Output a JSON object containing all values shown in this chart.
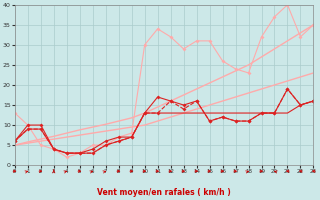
{
  "xlabel": "Vent moyen/en rafales ( km/h )",
  "bg_color": "#cce8e8",
  "grid_color": "#aacccc",
  "xlim": [
    0,
    23
  ],
  "ylim": [
    0,
    40
  ],
  "yticks": [
    0,
    5,
    10,
    15,
    20,
    25,
    30,
    35,
    40
  ],
  "xticks": [
    0,
    1,
    2,
    3,
    4,
    5,
    6,
    7,
    8,
    9,
    10,
    11,
    12,
    13,
    14,
    15,
    16,
    17,
    18,
    19,
    20,
    21,
    22,
    23
  ],
  "series": [
    {
      "x": [
        0,
        1,
        2,
        3,
        4,
        5,
        6,
        7,
        8,
        9,
        10,
        11,
        12,
        13,
        14,
        15,
        16,
        17,
        18,
        19,
        20,
        21,
        22,
        23
      ],
      "y": [
        5.0,
        5.5,
        6.0,
        6.5,
        7.0,
        7.5,
        8.0,
        8.5,
        9.0,
        9.5,
        10.0,
        11.0,
        12.0,
        13.0,
        14.0,
        15.0,
        16.0,
        17.0,
        18.0,
        19.0,
        20.0,
        21.0,
        22.0,
        23.0
      ],
      "color": "#ffaaaa",
      "marker": null,
      "markersize": 0,
      "linewidth": 1.0,
      "linestyle": "-"
    },
    {
      "x": [
        0,
        1,
        2,
        3,
        4,
        5,
        6,
        7,
        8,
        9,
        10,
        11,
        12,
        13,
        14,
        15,
        16,
        17,
        18,
        19,
        20,
        21,
        22,
        23
      ],
      "y": [
        5.0,
        5.8,
        6.5,
        7.2,
        8.0,
        8.8,
        9.5,
        10.2,
        11.0,
        11.8,
        13.0,
        14.5,
        16.0,
        17.5,
        19.0,
        20.5,
        22.0,
        23.5,
        25.0,
        27.0,
        29.0,
        31.0,
        33.0,
        35.0
      ],
      "color": "#ffaaaa",
      "marker": null,
      "markersize": 0,
      "linewidth": 1.0,
      "linestyle": "-"
    },
    {
      "x": [
        0,
        1,
        2,
        3,
        4,
        5,
        6,
        7,
        8,
        9,
        10,
        11,
        12,
        13,
        14,
        15,
        16,
        17,
        18,
        19,
        20,
        21,
        22,
        23
      ],
      "y": [
        13,
        10,
        5,
        4,
        2,
        3,
        5,
        5,
        7,
        8,
        30,
        34,
        32,
        29,
        31,
        31,
        26,
        24,
        23,
        32,
        37,
        40,
        32,
        35
      ],
      "color": "#ffaaaa",
      "marker": "D",
      "markersize": 2.0,
      "linewidth": 0.8,
      "linestyle": "-"
    },
    {
      "x": [
        0,
        1,
        2,
        3,
        4,
        5,
        6,
        7,
        8,
        9,
        10,
        11,
        12,
        13,
        14,
        15,
        16,
        17,
        18,
        19,
        20,
        21,
        22,
        23
      ],
      "y": [
        6,
        10,
        10,
        4,
        3,
        3,
        4,
        6,
        7,
        7,
        13,
        17,
        16,
        15,
        16,
        11,
        12,
        11,
        11,
        13,
        13,
        19,
        15,
        16
      ],
      "color": "#dd2222",
      "marker": "D",
      "markersize": 2.0,
      "linewidth": 0.8,
      "linestyle": "-"
    },
    {
      "x": [
        0,
        1,
        2,
        3,
        4,
        5,
        6,
        7,
        8,
        9,
        10,
        11,
        12,
        13,
        14,
        15,
        16,
        17,
        18,
        19,
        20,
        21,
        22,
        23
      ],
      "y": [
        6,
        9,
        9,
        4,
        3,
        3,
        3,
        5,
        6,
        7,
        13,
        13,
        13,
        13,
        13,
        13,
        13,
        13,
        13,
        13,
        13,
        13,
        15,
        16
      ],
      "color": "#dd2222",
      "marker": null,
      "markersize": 0,
      "linewidth": 0.8,
      "linestyle": "-"
    },
    {
      "x": [
        0,
        1,
        2,
        3,
        4,
        5,
        6,
        7,
        8,
        9,
        10,
        11,
        12,
        13,
        14,
        15,
        16,
        17,
        18,
        19,
        20,
        21,
        22,
        23
      ],
      "y": [
        6,
        9,
        9,
        4,
        3,
        3,
        3,
        5,
        6,
        7,
        13,
        13,
        16,
        14,
        16,
        11,
        12,
        11,
        11,
        13,
        13,
        19,
        15,
        16
      ],
      "color": "#dd2222",
      "marker": "D",
      "markersize": 2.0,
      "linewidth": 0.8,
      "linestyle": "--"
    }
  ],
  "arrow_color": "#cc0000",
  "arrow_dirs": [
    0,
    45,
    0,
    90,
    45,
    0,
    45,
    45,
    0,
    0,
    0,
    0,
    0,
    0,
    0,
    0,
    0,
    0,
    45,
    0,
    135,
    180,
    180,
    180
  ]
}
